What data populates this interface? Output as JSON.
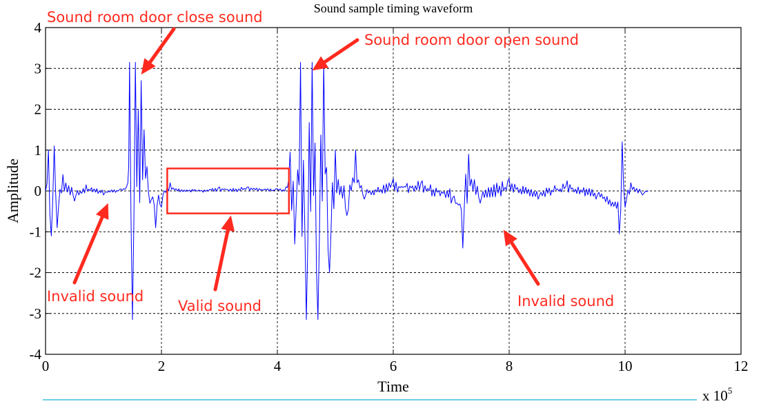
{
  "chart_data": {
    "type": "line",
    "title": "Sound sample timing waveform",
    "xlabel": "Time",
    "ylabel": "Amplitude",
    "x_multiplier": "x 10",
    "x_multiplier_exponent": "5",
    "xlim": [
      0,
      12
    ],
    "ylim": [
      -4,
      4
    ],
    "grid": true,
    "xticks": [
      "0",
      "2",
      "4",
      "6",
      "8",
      "10",
      "12"
    ],
    "yticks": [
      "4",
      "3",
      "2",
      "1",
      "0",
      "-1",
      "-2",
      "-3",
      "-4"
    ],
    "series_color": "#0000ff",
    "annotation_color": "#ff2a1f",
    "series": [
      {
        "x": [
          0.0,
          0.05,
          0.1,
          0.15,
          0.2,
          0.3,
          0.5,
          0.7,
          1.0,
          1.3,
          1.42,
          1.45,
          1.5,
          1.55,
          1.6,
          1.65,
          1.7,
          1.75,
          1.8,
          1.9,
          2.0,
          2.1,
          2.15,
          2.3,
          2.6,
          3.0,
          3.5,
          4.0,
          4.15,
          4.22,
          4.3,
          4.4,
          4.5,
          4.6,
          4.7,
          4.8,
          4.9,
          5.0,
          5.2,
          5.35,
          5.5,
          6.0,
          6.5,
          7.0,
          7.2,
          7.3,
          7.5,
          8.0,
          8.5,
          9.0,
          9.5,
          9.9,
          9.95,
          10.0,
          10.1,
          10.3,
          10.4
        ],
        "values": [
          0.0,
          1.0,
          -1.1,
          1.1,
          -0.9,
          0.4,
          -0.25,
          0.15,
          -0.1,
          0.05,
          0.2,
          3.15,
          -3.15,
          3.15,
          2.0,
          2.7,
          1.5,
          0.6,
          -0.3,
          -0.9,
          -0.4,
          0.1,
          0.2,
          0.05,
          0.0,
          0.1,
          0.1,
          0.05,
          0.1,
          0.95,
          -1.3,
          3.15,
          -3.15,
          3.15,
          -3.15,
          3.15,
          -2.0,
          1.0,
          -0.6,
          1.0,
          -0.2,
          0.3,
          0.25,
          -0.3,
          -1.4,
          0.9,
          -0.3,
          0.3,
          -0.2,
          0.25,
          -0.2,
          -1.05,
          1.2,
          -0.4,
          0.2,
          -0.1,
          0.0
        ]
      }
    ],
    "annotations": [
      {
        "text": "Sound room door close sound",
        "target_x": 1.65,
        "target_y": 2.85
      },
      {
        "text": "Sound room door open sound",
        "target_x": 4.6,
        "target_y": 2.95
      },
      {
        "text": "Invalid sound",
        "target_x": 1.08,
        "target_y": -0.3
      },
      {
        "text": "Valid sound",
        "target_x": 3.2,
        "target_y": -0.6
      },
      {
        "text": "Invalid sound",
        "target_x": 7.9,
        "target_y": -0.95
      }
    ],
    "highlight_box": {
      "x": [
        2.1,
        4.2
      ],
      "y": [
        -0.55,
        0.55
      ]
    }
  }
}
